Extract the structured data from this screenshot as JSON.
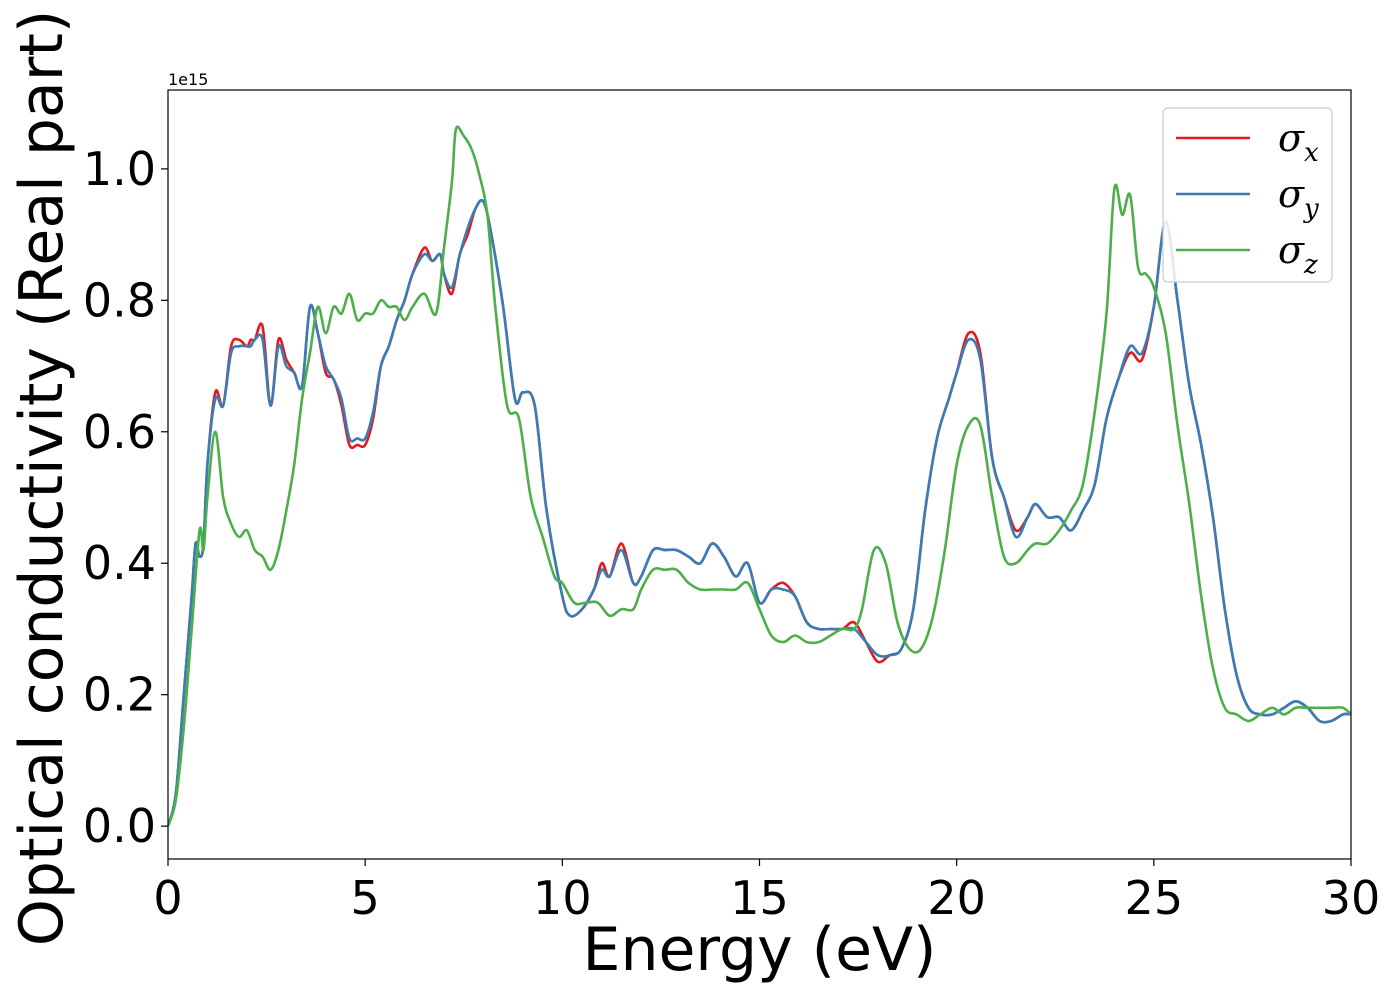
{
  "chart_data": {
    "type": "line",
    "xlabel": "Energy (eV)",
    "ylabel": "Optical conductivity (Real part)",
    "offset_text": "1e15",
    "xlim": [
      0,
      30
    ],
    "ylim": [
      -0.05,
      1.12
    ],
    "xticks": [
      0,
      5,
      10,
      15,
      20,
      25,
      30
    ],
    "xtick_labels": [
      "0",
      "5",
      "10",
      "15",
      "20",
      "25",
      "30"
    ],
    "yticks": [
      0.0,
      0.2,
      0.4,
      0.6,
      0.8,
      1.0
    ],
    "ytick_labels": [
      "0.0",
      "0.2",
      "0.4",
      "0.6",
      "0.8",
      "1.0"
    ],
    "grid": false,
    "legend_position": "top-right",
    "colors": {
      "sigma_x": "#e41a1c",
      "sigma_y": "#377eb8",
      "sigma_z": "#4daf4a"
    },
    "series": [
      {
        "name": "σx",
        "legend_base": "σ",
        "legend_sub": "x",
        "color": "#e41a1c",
        "x": [
          0,
          0.2,
          0.4,
          0.6,
          0.7,
          0.8,
          0.9,
          1.0,
          1.2,
          1.4,
          1.6,
          1.8,
          2.0,
          2.1,
          2.2,
          2.4,
          2.6,
          2.8,
          3.0,
          3.2,
          3.4,
          3.6,
          3.8,
          4.0,
          4.2,
          4.4,
          4.6,
          4.8,
          5.0,
          5.2,
          5.4,
          5.6,
          5.8,
          6.0,
          6.2,
          6.5,
          6.7,
          6.9,
          7.0,
          7.2,
          7.4,
          7.6,
          7.8,
          8.0,
          8.2,
          8.5,
          8.8,
          9.0,
          9.3,
          9.6,
          10.0,
          10.2,
          10.5,
          10.8,
          11.0,
          11.2,
          11.5,
          11.8,
          12.0,
          12.3,
          12.6,
          12.9,
          13.2,
          13.5,
          13.8,
          14.1,
          14.4,
          14.7,
          15.0,
          15.3,
          15.6,
          15.9,
          16.2,
          16.5,
          16.8,
          17.1,
          17.4,
          17.7,
          18.0,
          18.3,
          18.6,
          18.9,
          19.2,
          19.5,
          19.8,
          20.0,
          20.3,
          20.6,
          20.9,
          21.2,
          21.5,
          21.8,
          22.0,
          22.3,
          22.6,
          22.9,
          23.2,
          23.5,
          23.8,
          24.1,
          24.4,
          24.7,
          25.0,
          25.3,
          25.6,
          25.9,
          26.2,
          26.5,
          26.8,
          27.1,
          27.4,
          27.7,
          28.0,
          28.3,
          28.6,
          28.9,
          29.2,
          29.5,
          29.8,
          30.0
        ],
        "values": [
          0.0,
          0.05,
          0.2,
          0.35,
          0.43,
          0.41,
          0.43,
          0.55,
          0.66,
          0.64,
          0.73,
          0.74,
          0.73,
          0.74,
          0.74,
          0.76,
          0.64,
          0.74,
          0.71,
          0.69,
          0.67,
          0.79,
          0.75,
          0.69,
          0.68,
          0.64,
          0.58,
          0.58,
          0.58,
          0.62,
          0.7,
          0.73,
          0.77,
          0.8,
          0.84,
          0.88,
          0.86,
          0.87,
          0.84,
          0.81,
          0.87,
          0.9,
          0.94,
          0.95,
          0.9,
          0.79,
          0.65,
          0.66,
          0.64,
          0.48,
          0.35,
          0.32,
          0.33,
          0.36,
          0.4,
          0.38,
          0.43,
          0.37,
          0.38,
          0.42,
          0.42,
          0.42,
          0.41,
          0.4,
          0.43,
          0.41,
          0.38,
          0.4,
          0.34,
          0.36,
          0.37,
          0.35,
          0.31,
          0.3,
          0.3,
          0.3,
          0.31,
          0.28,
          0.25,
          0.26,
          0.27,
          0.33,
          0.48,
          0.59,
          0.65,
          0.69,
          0.75,
          0.72,
          0.56,
          0.5,
          0.45,
          0.47,
          0.49,
          0.47,
          0.47,
          0.45,
          0.48,
          0.52,
          0.62,
          0.68,
          0.72,
          0.71,
          0.79,
          0.92,
          0.8,
          0.67,
          0.58,
          0.47,
          0.33,
          0.23,
          0.18,
          0.17,
          0.17,
          0.18,
          0.19,
          0.18,
          0.16,
          0.16,
          0.17,
          0.17
        ]
      },
      {
        "name": "σy",
        "legend_base": "σ",
        "legend_sub": "y",
        "color": "#377eb8",
        "x": [
          0,
          0.2,
          0.4,
          0.6,
          0.7,
          0.8,
          0.9,
          1.0,
          1.2,
          1.4,
          1.6,
          1.8,
          2.0,
          2.1,
          2.2,
          2.4,
          2.6,
          2.8,
          3.0,
          3.2,
          3.4,
          3.6,
          3.8,
          4.0,
          4.2,
          4.4,
          4.6,
          4.8,
          5.0,
          5.2,
          5.4,
          5.6,
          5.8,
          6.0,
          6.2,
          6.5,
          6.7,
          6.9,
          7.0,
          7.2,
          7.4,
          7.6,
          7.8,
          8.0,
          8.2,
          8.5,
          8.8,
          9.0,
          9.3,
          9.6,
          10.0,
          10.2,
          10.5,
          10.8,
          11.0,
          11.2,
          11.5,
          11.8,
          12.0,
          12.3,
          12.6,
          12.9,
          13.2,
          13.5,
          13.8,
          14.1,
          14.4,
          14.7,
          15.0,
          15.3,
          15.6,
          15.9,
          16.2,
          16.5,
          16.8,
          17.1,
          17.4,
          17.7,
          18.0,
          18.3,
          18.6,
          18.9,
          19.2,
          19.5,
          19.8,
          20.0,
          20.3,
          20.6,
          20.9,
          21.2,
          21.5,
          21.8,
          22.0,
          22.3,
          22.6,
          22.9,
          23.2,
          23.5,
          23.8,
          24.1,
          24.4,
          24.7,
          25.0,
          25.3,
          25.6,
          25.9,
          26.2,
          26.5,
          26.8,
          27.1,
          27.4,
          27.7,
          28.0,
          28.3,
          28.6,
          28.9,
          29.2,
          29.5,
          29.8,
          30.0
        ],
        "values": [
          0.0,
          0.05,
          0.2,
          0.35,
          0.43,
          0.41,
          0.43,
          0.55,
          0.65,
          0.64,
          0.72,
          0.73,
          0.73,
          0.73,
          0.74,
          0.74,
          0.64,
          0.73,
          0.7,
          0.69,
          0.67,
          0.79,
          0.75,
          0.7,
          0.68,
          0.65,
          0.59,
          0.59,
          0.59,
          0.63,
          0.7,
          0.73,
          0.77,
          0.8,
          0.84,
          0.87,
          0.86,
          0.87,
          0.84,
          0.82,
          0.87,
          0.91,
          0.94,
          0.95,
          0.9,
          0.79,
          0.65,
          0.66,
          0.64,
          0.48,
          0.35,
          0.32,
          0.33,
          0.36,
          0.39,
          0.38,
          0.42,
          0.37,
          0.38,
          0.42,
          0.42,
          0.42,
          0.41,
          0.4,
          0.43,
          0.41,
          0.38,
          0.4,
          0.34,
          0.36,
          0.36,
          0.35,
          0.31,
          0.3,
          0.3,
          0.3,
          0.3,
          0.28,
          0.26,
          0.26,
          0.27,
          0.33,
          0.48,
          0.59,
          0.65,
          0.69,
          0.74,
          0.71,
          0.56,
          0.5,
          0.44,
          0.47,
          0.49,
          0.47,
          0.47,
          0.45,
          0.48,
          0.52,
          0.62,
          0.68,
          0.73,
          0.72,
          0.79,
          0.92,
          0.8,
          0.67,
          0.58,
          0.47,
          0.33,
          0.23,
          0.18,
          0.17,
          0.17,
          0.18,
          0.19,
          0.18,
          0.16,
          0.16,
          0.17,
          0.17
        ]
      },
      {
        "name": "σz",
        "legend_base": "σ",
        "legend_sub": "z",
        "color": "#4daf4a",
        "x": [
          0,
          0.2,
          0.4,
          0.6,
          0.8,
          0.9,
          1.0,
          1.2,
          1.4,
          1.6,
          1.8,
          2.0,
          2.2,
          2.4,
          2.6,
          2.8,
          3.0,
          3.2,
          3.4,
          3.6,
          3.8,
          4.0,
          4.2,
          4.4,
          4.6,
          4.8,
          5.0,
          5.2,
          5.4,
          5.6,
          5.8,
          6.0,
          6.2,
          6.5,
          6.8,
          7.0,
          7.2,
          7.3,
          7.5,
          7.7,
          7.9,
          8.1,
          8.3,
          8.6,
          8.9,
          9.2,
          9.5,
          9.8,
          10.0,
          10.3,
          10.6,
          10.9,
          11.2,
          11.5,
          11.8,
          12.0,
          12.3,
          12.6,
          12.9,
          13.2,
          13.5,
          13.8,
          14.1,
          14.4,
          14.7,
          15.0,
          15.3,
          15.6,
          15.9,
          16.2,
          16.5,
          16.8,
          17.1,
          17.4,
          17.6,
          17.9,
          18.2,
          18.5,
          18.8,
          19.1,
          19.4,
          19.7,
          20.0,
          20.3,
          20.6,
          20.9,
          21.2,
          21.5,
          21.8,
          22.0,
          22.3,
          22.6,
          22.9,
          23.2,
          23.5,
          23.8,
          24.0,
          24.2,
          24.4,
          24.6,
          24.8,
          25.0,
          25.3,
          25.6,
          25.9,
          26.2,
          26.5,
          26.8,
          27.1,
          27.4,
          27.7,
          28.0,
          28.3,
          28.6,
          28.9,
          29.2,
          29.5,
          29.8,
          30.0
        ],
        "values": [
          0.0,
          0.04,
          0.15,
          0.3,
          0.45,
          0.42,
          0.5,
          0.6,
          0.5,
          0.46,
          0.44,
          0.45,
          0.42,
          0.41,
          0.39,
          0.42,
          0.48,
          0.55,
          0.65,
          0.72,
          0.79,
          0.75,
          0.79,
          0.78,
          0.81,
          0.77,
          0.78,
          0.78,
          0.8,
          0.79,
          0.79,
          0.77,
          0.79,
          0.81,
          0.78,
          0.88,
          0.98,
          1.06,
          1.05,
          1.03,
          0.99,
          0.93,
          0.79,
          0.64,
          0.62,
          0.5,
          0.44,
          0.38,
          0.37,
          0.34,
          0.34,
          0.34,
          0.32,
          0.33,
          0.33,
          0.36,
          0.39,
          0.39,
          0.39,
          0.37,
          0.36,
          0.36,
          0.36,
          0.36,
          0.37,
          0.33,
          0.29,
          0.28,
          0.29,
          0.28,
          0.28,
          0.29,
          0.3,
          0.3,
          0.33,
          0.42,
          0.4,
          0.31,
          0.27,
          0.27,
          0.32,
          0.42,
          0.55,
          0.61,
          0.61,
          0.5,
          0.41,
          0.4,
          0.42,
          0.43,
          0.43,
          0.45,
          0.48,
          0.52,
          0.63,
          0.78,
          0.97,
          0.93,
          0.96,
          0.85,
          0.84,
          0.82,
          0.75,
          0.61,
          0.49,
          0.35,
          0.24,
          0.18,
          0.17,
          0.16,
          0.17,
          0.18,
          0.17,
          0.18,
          0.18,
          0.18,
          0.18,
          0.18,
          0.17
        ]
      }
    ]
  }
}
